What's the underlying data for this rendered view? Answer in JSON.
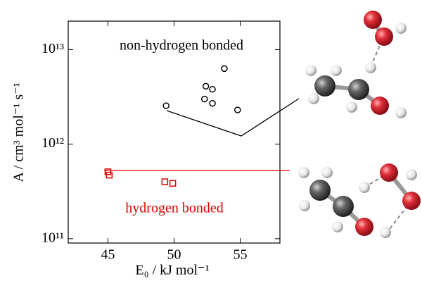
{
  "chart_data": {
    "type": "scatter",
    "xlabel": "E₀ / kJ mol⁻¹",
    "ylabel": "A / cm³ mol⁻¹ s⁻¹",
    "xlim": [
      42,
      58
    ],
    "xticks": [
      45,
      50,
      55
    ],
    "ylim": [
      90000000000,
      20000000000000
    ],
    "yscale": "log",
    "yticks": [
      {
        "value": 100000000000,
        "label": "10¹¹"
      },
      {
        "value": 1000000000000,
        "label": "10¹²"
      },
      {
        "value": 10000000000000,
        "label": "10¹³"
      }
    ],
    "series": [
      {
        "name": "non-hydrogen bonded",
        "color": "#000000",
        "marker": "circle",
        "x": [
          49.4,
          52.4,
          52.9,
          52.3,
          52.9,
          53.8,
          54.8
        ],
        "values": [
          2550000000000,
          4100000000000,
          3800000000000,
          3000000000000,
          2700000000000,
          6300000000000,
          2300000000000
        ]
      },
      {
        "name": "hydrogen bonded",
        "color": "#e00000",
        "marker": "square",
        "x": [
          45.0,
          45.1,
          49.3,
          49.9
        ],
        "values": [
          510000000000,
          470000000000,
          400000000000,
          385000000000
        ]
      }
    ]
  }
}
